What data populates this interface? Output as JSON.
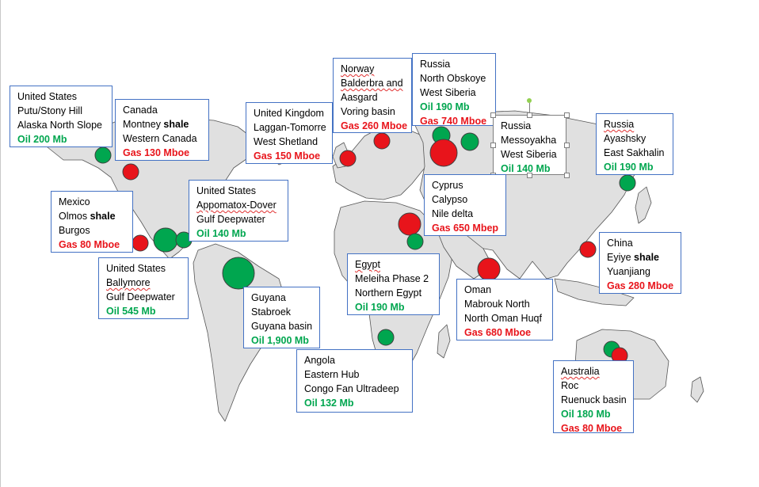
{
  "legend_colors": {
    "oil": "#00a64f",
    "gas": "#e8141b",
    "land": "#e0e0e0",
    "border": "#4472c4"
  },
  "callouts": [
    {
      "id": "us-putu",
      "kind": "oil",
      "lines": [
        "United States",
        "Putu/Stony Hill",
        "Alaska North Slope",
        "Oil 200 Mb"
      ]
    },
    {
      "id": "canada",
      "kind": "gas",
      "lines": [
        "Canada",
        "Montney shale",
        "Western Canada",
        "Gas 130 Mboe"
      ]
    },
    {
      "id": "uk",
      "kind": "gas",
      "lines": [
        "United Kingdom",
        "Laggan-Tomorre",
        "West Shetland",
        "Gas 150 Mboe"
      ]
    },
    {
      "id": "norway",
      "kind": "gas",
      "lines": [
        "Norway",
        "Balderbra and",
        "Aasgard",
        "Voring basin",
        "Gas 260 Mboe"
      ]
    },
    {
      "id": "russia-north",
      "kind": "mixed",
      "lines": [
        "Russia",
        "North Obskoye",
        "West Siberia",
        "Oil 190 Mb",
        "Gas 740 Mboe"
      ]
    },
    {
      "id": "russia-mess",
      "kind": "oil",
      "lines": [
        "Russia",
        "Messoyakha",
        "West Siberia",
        "Oil 140 Mb"
      ]
    },
    {
      "id": "russia-aya",
      "kind": "oil",
      "lines": [
        "Russia",
        "Ayashsky",
        "East  Sakhalin",
        "Oil 190 Mb"
      ]
    },
    {
      "id": "mexico",
      "kind": "gas",
      "lines": [
        "Mexico",
        "Olmos shale",
        "Burgos",
        "Gas 80 Mboe"
      ]
    },
    {
      "id": "us-appo",
      "kind": "oil",
      "lines": [
        "United States",
        "Appomatox-Dover",
        "Gulf Deepwater",
        "Oil 140 Mb"
      ]
    },
    {
      "id": "cyprus",
      "kind": "gas",
      "lines": [
        "Cyprus",
        "Calypso",
        "Nile delta",
        "Gas 650 Mbep"
      ]
    },
    {
      "id": "china",
      "kind": "gas",
      "lines": [
        "China",
        "Eyiye shale",
        "Yuanjiang",
        "Gas 280 Mboe"
      ]
    },
    {
      "id": "us-bally",
      "kind": "oil",
      "lines": [
        "United States",
        "Ballymore",
        "Gulf Deepwater",
        "Oil 545 Mb"
      ]
    },
    {
      "id": "egypt",
      "kind": "oil",
      "lines": [
        "Egypt",
        "Meleiha Phase 2",
        "Northern Egypt",
        "Oil 190 Mb"
      ]
    },
    {
      "id": "oman",
      "kind": "gas",
      "lines": [
        "Oman",
        "Mabrouk North",
        "North Oman Huqf",
        "Gas 680 Mboe"
      ]
    },
    {
      "id": "guyana",
      "kind": "oil",
      "lines": [
        "Guyana",
        "Stabroek",
        "Guyana basin",
        "Oil 1,900 Mb"
      ]
    },
    {
      "id": "angola",
      "kind": "oil",
      "lines": [
        "Angola",
        "Eastern Hub",
        "Congo Fan Ultradeep",
        "Oil 132 Mb"
      ]
    },
    {
      "id": "australia",
      "kind": "mixed",
      "lines": [
        "Australia",
        "Roc",
        "Ruenuck basin",
        "Oil 180 Mb",
        "Gas 80 Mboe"
      ]
    }
  ]
}
